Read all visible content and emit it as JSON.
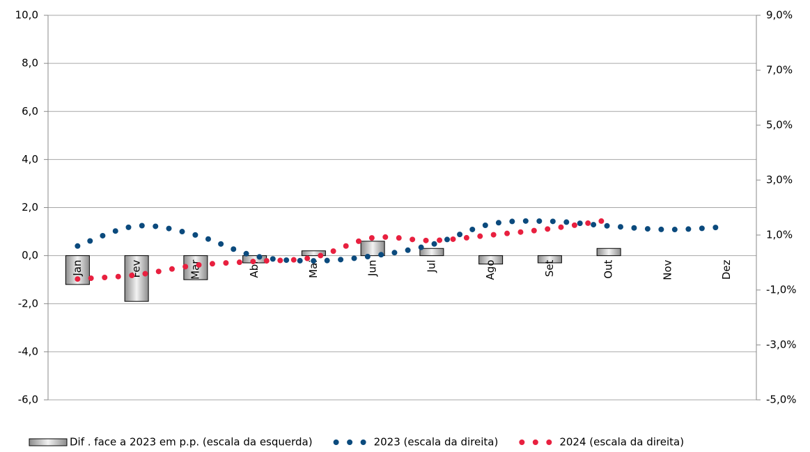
{
  "chart_data": {
    "type": "bar-line",
    "categories": [
      "Jan",
      "Fev",
      "Mar",
      "Abr",
      "Mai",
      "Jun",
      "Jul",
      "Ago",
      "Set",
      "Out",
      "Nov",
      "Dez"
    ],
    "series": [
      {
        "name": "Dif . face a 2023 em p.p. (escala da esquerda)",
        "type": "bar",
        "color": "#c0c0c0",
        "values": [
          -1.2,
          -1.9,
          -1.0,
          -0.3,
          0.2,
          0.6,
          0.3,
          -0.35,
          -0.3,
          0.3,
          null,
          null
        ]
      },
      {
        "name": "2023 (escala da direita)",
        "type": "line",
        "axis": "y2",
        "color": "#0b4a7d",
        "values": [
          0.6,
          1.33,
          1.0,
          0.24,
          0.06,
          0.24,
          0.65,
          1.4,
          1.5,
          1.33,
          1.2,
          1.3
        ]
      },
      {
        "name": "2024 (escala da direita)",
        "type": "line",
        "axis": "y2",
        "color": "#e8203f",
        "values": [
          -0.6,
          -0.45,
          -0.1,
          0.04,
          0.19,
          0.9,
          0.8,
          1.0,
          1.23,
          1.55,
          null,
          null
        ]
      }
    ],
    "ylim": [
      -6,
      10
    ],
    "yticks": [
      {
        "value": -6,
        "label": "-6,0"
      },
      {
        "value": -4,
        "label": "-4,0"
      },
      {
        "value": -2,
        "label": "-2,0"
      },
      {
        "value": 0,
        "label": "0,0"
      },
      {
        "value": 2,
        "label": "2,0"
      },
      {
        "value": 4,
        "label": "4,0"
      },
      {
        "value": 6,
        "label": "6,0"
      },
      {
        "value": 8,
        "label": "8,0"
      },
      {
        "value": 10,
        "label": "10,0"
      }
    ],
    "y2lim": [
      -5,
      9
    ],
    "y2ticks": [
      {
        "value": -5,
        "label": "-5,0%"
      },
      {
        "value": -3,
        "label": "-3,0%"
      },
      {
        "value": -1,
        "label": "-1,0%"
      },
      {
        "value": 1,
        "label": "1,0%"
      },
      {
        "value": 3,
        "label": "3,0%"
      },
      {
        "value": 5,
        "label": "5,0%"
      },
      {
        "value": 7,
        "label": "7,0%"
      },
      {
        "value": 9,
        "label": "9,0%"
      }
    ],
    "grid": true,
    "legend": "bottom"
  }
}
